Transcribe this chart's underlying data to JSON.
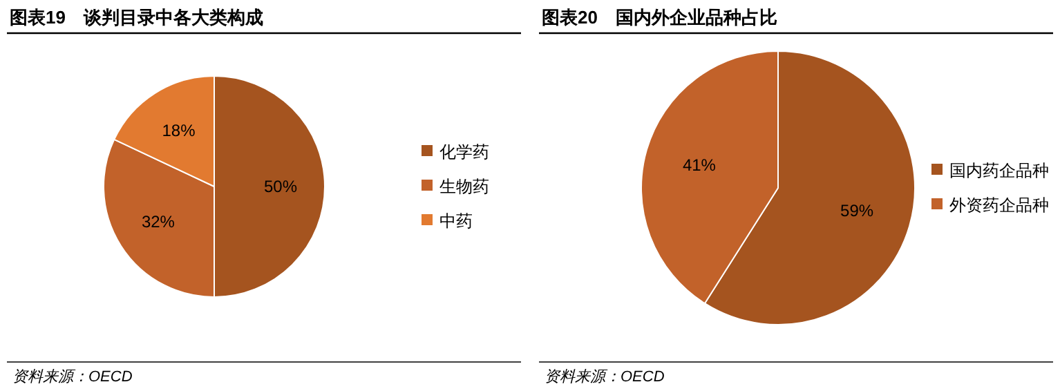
{
  "chart_data": [
    {
      "type": "pie",
      "title": "图表19　谈判目录中各大类构成",
      "categories": [
        "化学药",
        "生物药",
        "中药"
      ],
      "values": [
        50,
        32,
        18
      ],
      "colors": [
        "#a5541f",
        "#c2622a",
        "#e27a30"
      ],
      "value_labels": [
        "50%",
        "32%",
        "18%"
      ],
      "legend": "right",
      "annotations": [
        "资料来源：OECD"
      ]
    },
    {
      "type": "pie",
      "title": "图表20　国内外企业品种占比",
      "categories": [
        "国内药企品种",
        "外资药企品种"
      ],
      "values": [
        59,
        41
      ],
      "colors": [
        "#a5541f",
        "#c2622a"
      ],
      "value_labels": [
        "59%",
        "41%"
      ],
      "legend": "right",
      "annotations": [
        "资料来源：OECD"
      ]
    }
  ]
}
